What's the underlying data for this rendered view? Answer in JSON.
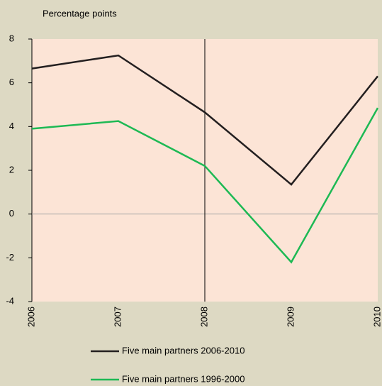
{
  "chart_data": {
    "type": "line",
    "ylabel": "Percentage points",
    "x": [
      2006,
      2007,
      2008,
      2009,
      2010
    ],
    "xlim": [
      2006,
      2010
    ],
    "xticks": [
      2006,
      2007,
      2008,
      2009,
      2010
    ],
    "ylim": [
      -4,
      8
    ],
    "yticks": [
      -4,
      -2,
      0,
      2,
      4,
      6,
      8
    ],
    "vline": 2008,
    "series": [
      {
        "name": "Five main partners 2006-2010",
        "color": "#231f20",
        "values": [
          6.65,
          7.25,
          4.65,
          1.35,
          6.3
        ]
      },
      {
        "name": "Five main partners 1996-2000",
        "color": "#1db954",
        "values": [
          3.9,
          4.25,
          2.2,
          -2.2,
          4.85
        ]
      }
    ]
  }
}
